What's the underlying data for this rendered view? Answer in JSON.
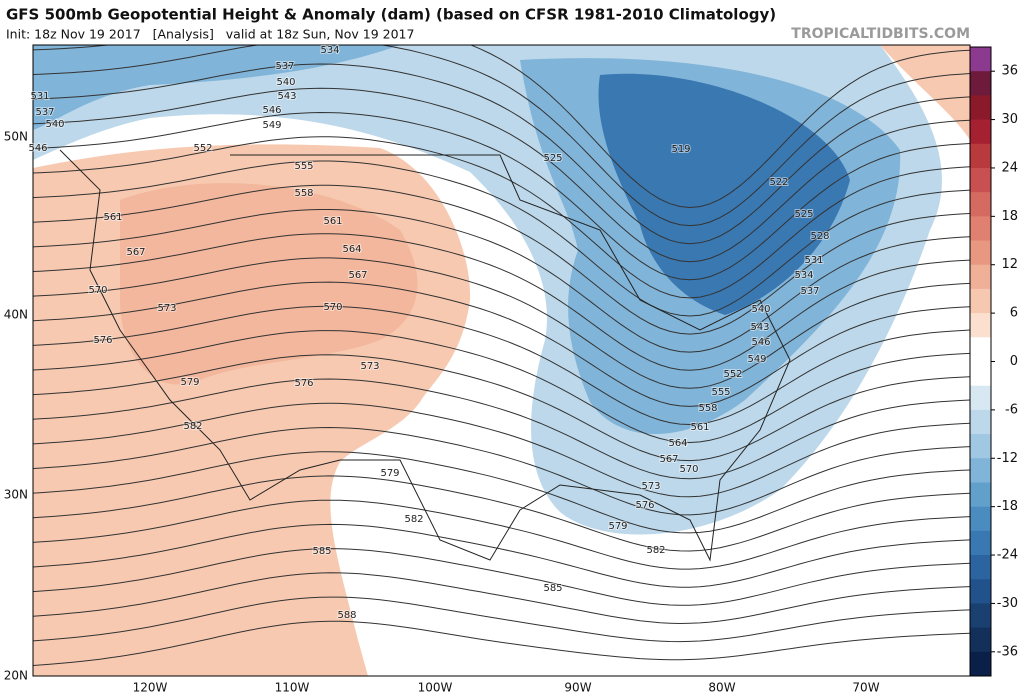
{
  "header": {
    "title": "GFS 500mb Geopotential Height & Anomaly (dam) (based on CFSR 1981-2010 Climatology)",
    "init": "Init: 18z Nov 19 2017   [Analysis]   valid at 18z Sun, Nov 19 2017",
    "watermark": "TROPICALTIDBITS.COM"
  },
  "map": {
    "lat_labels": [
      "50N",
      "40N",
      "30N",
      "20N"
    ],
    "lon_labels": [
      "120W",
      "110W",
      "100W",
      "90W",
      "80W",
      "70W"
    ],
    "contour_labels": [
      "534",
      "537",
      "540",
      "543",
      "546",
      "549",
      "552",
      "555",
      "558",
      "561",
      "564",
      "567",
      "570",
      "573",
      "576",
      "579",
      "582",
      "585",
      "588",
      "561",
      "567",
      "570",
      "573",
      "576",
      "531",
      "537",
      "540",
      "546",
      "579",
      "582",
      "585",
      "582",
      "579",
      "576",
      "573",
      "570",
      "567",
      "564",
      "561",
      "558",
      "555",
      "552",
      "549",
      "546",
      "543",
      "540",
      "537",
      "534",
      "531",
      "528",
      "525",
      "522",
      "519",
      "525"
    ]
  },
  "colorbar": {
    "clim": [
      -39,
      39
    ],
    "ticks": [
      36,
      30,
      24,
      18,
      12,
      6,
      0,
      -6,
      -12,
      -18,
      -24,
      -30,
      -36
    ],
    "colors": [
      "#8b3a8f",
      "#6e1a3a",
      "#8a1a2a",
      "#a52030",
      "#b83a3c",
      "#c85050",
      "#d56a60",
      "#e08070",
      "#e89880",
      "#f0b098",
      "#f6c8b0",
      "#fbe0d0",
      "#ffffff",
      "#ffffff",
      "#d8e8f2",
      "#bcd8ea",
      "#a0c8e2",
      "#80b4d8",
      "#62a0cc",
      "#4a8cc0",
      "#3a78b2",
      "#2c64a0",
      "#22528c",
      "#1a4070",
      "#12305a",
      "#0a2048"
    ]
  }
}
